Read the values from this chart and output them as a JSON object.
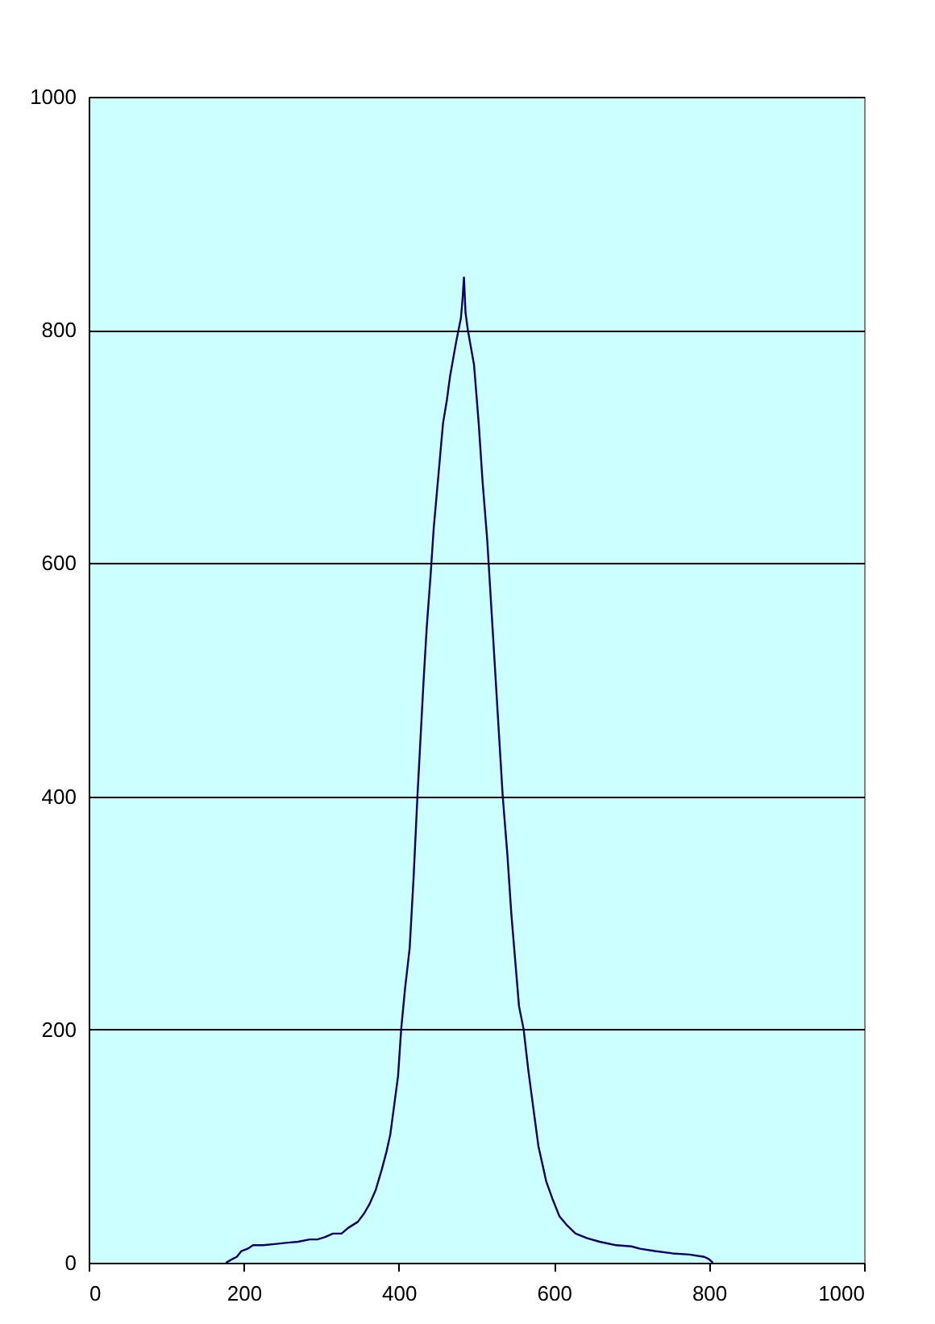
{
  "chart_data": {
    "type": "line",
    "grid": "y",
    "xlim": [
      0,
      1000
    ],
    "ylim": [
      0,
      1000
    ],
    "xticks": [
      0,
      200,
      400,
      600,
      800,
      1000
    ],
    "yticks": [
      0,
      200,
      400,
      600,
      800,
      1000
    ],
    "series": [
      {
        "color": "#000066",
        "x": [
          177,
          185,
          191,
          197,
          205,
          212,
          225,
          240,
          254,
          270,
          285,
          295,
          305,
          315,
          326,
          335,
          347,
          355,
          362,
          370,
          378,
          384,
          389,
          394,
          399,
          403,
          408,
          414,
          419,
          424,
          428,
          432,
          436,
          441,
          445,
          449,
          453,
          457,
          462,
          466,
          470,
          474,
          477,
          480,
          482,
          484,
          486,
          489,
          493,
          497,
          500,
          503,
          508,
          514,
          519,
          524,
          529,
          534,
          540,
          545,
          550,
          555,
          561,
          567,
          572,
          576,
          580,
          585,
          590,
          598,
          607,
          617,
          628,
          643,
          659,
          680,
          700,
          711,
          730,
          753,
          775,
          794,
          800,
          805
        ],
        "values": [
          0,
          3,
          5,
          10,
          12,
          15,
          15,
          16,
          17,
          18,
          20,
          20,
          22,
          25,
          25,
          30,
          35,
          42,
          50,
          62,
          80,
          95,
          110,
          135,
          160,
          200,
          235,
          270,
          330,
          400,
          450,
          500,
          545,
          590,
          630,
          660,
          690,
          720,
          740,
          760,
          775,
          790,
          800,
          810,
          825,
          845,
          815,
          800,
          785,
          770,
          745,
          720,
          670,
          620,
          565,
          510,
          455,
          400,
          350,
          300,
          260,
          220,
          200,
          165,
          140,
          120,
          100,
          85,
          70,
          55,
          40,
          32,
          25,
          21,
          18,
          15,
          14,
          12,
          10,
          8,
          7,
          5,
          3,
          0
        ]
      }
    ]
  }
}
